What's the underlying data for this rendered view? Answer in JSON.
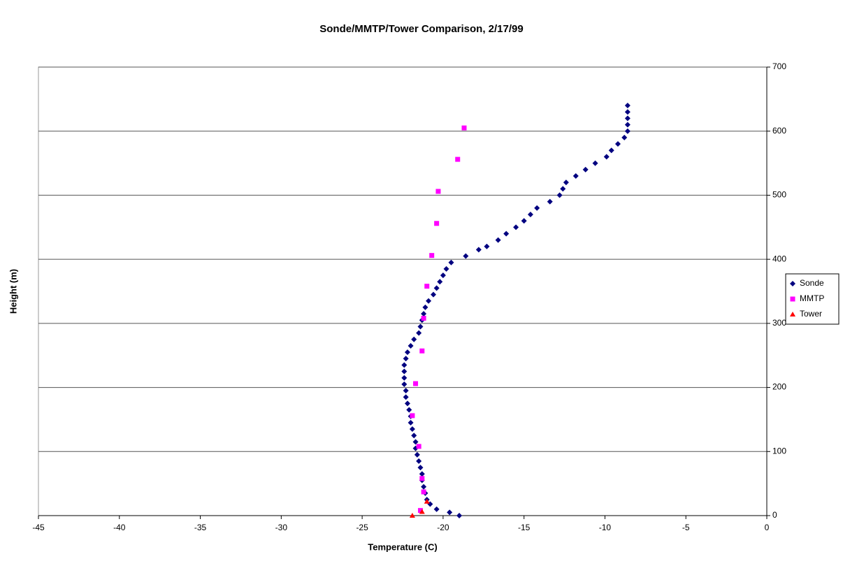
{
  "chart_data": {
    "type": "scatter",
    "title": "Sonde/MMTP/Tower Comparison, 2/17/99",
    "x_label": "Temperature (C)",
    "y_label": "Height (m)",
    "xlim": [
      -45,
      0
    ],
    "xticks": [
      -45,
      -40,
      -35,
      -30,
      -25,
      -20,
      -15,
      -10,
      -5,
      0
    ],
    "ylim": [
      0,
      700
    ],
    "yticks": [
      0,
      100,
      200,
      300,
      400,
      500,
      600,
      700
    ],
    "grid": true,
    "legend": "right",
    "series": [
      {
        "name": "Sonde",
        "color": "#000080",
        "marker": "diamond",
        "x": [
          -19.0,
          -19.6,
          -20.4,
          -20.8,
          -21.0,
          -21.1,
          -21.2,
          -21.3,
          -21.3,
          -21.4,
          -21.5,
          -21.6,
          -21.7,
          -21.7,
          -21.8,
          -21.9,
          -22.0,
          -22.0,
          -22.1,
          -22.2,
          -22.3,
          -22.3,
          -22.4,
          -22.4,
          -22.4,
          -22.4,
          -22.3,
          -22.2,
          -22.0,
          -21.8,
          -21.5,
          -21.4,
          -21.3,
          -21.2,
          -21.1,
          -20.9,
          -20.6,
          -20.4,
          -20.2,
          -20.0,
          -19.8,
          -19.5,
          -18.6,
          -17.8,
          -17.3,
          -16.6,
          -16.1,
          -15.5,
          -15.0,
          -14.6,
          -14.2,
          -13.4,
          -12.8,
          -12.6,
          -12.4,
          -11.8,
          -11.2,
          -10.6,
          -9.9,
          -9.6,
          -9.2,
          -8.8,
          -8.6,
          -8.6,
          -8.6,
          -8.6,
          -8.6
        ],
        "values": [
          0,
          5,
          10,
          18,
          25,
          35,
          45,
          55,
          65,
          75,
          85,
          95,
          105,
          115,
          125,
          135,
          145,
          155,
          165,
          175,
          185,
          195,
          205,
          215,
          225,
          235,
          245,
          255,
          265,
          275,
          285,
          295,
          305,
          315,
          325,
          335,
          345,
          355,
          365,
          375,
          385,
          395,
          405,
          415,
          420,
          430,
          440,
          450,
          460,
          470,
          480,
          490,
          500,
          510,
          520,
          530,
          540,
          550,
          560,
          570,
          580,
          590,
          600,
          610,
          620,
          630,
          640
        ]
      },
      {
        "name": "MMTP",
        "color": "#ff00ff",
        "marker": "square",
        "x": [
          -21.4,
          -21.2,
          -21.3,
          -21.5,
          -21.9,
          -21.7,
          -21.3,
          -21.2,
          -21.0,
          -20.7,
          -20.4,
          -20.3,
          -19.1,
          -18.7
        ],
        "values": [
          8,
          37,
          58,
          108,
          156,
          206,
          257,
          308,
          358,
          406,
          456,
          506,
          556,
          605
        ]
      },
      {
        "name": "Tower",
        "color": "#ff0000",
        "marker": "triangle",
        "x": [
          -21.9,
          -21.3,
          -21.0
        ],
        "values": [
          0,
          6,
          22
        ]
      }
    ]
  }
}
